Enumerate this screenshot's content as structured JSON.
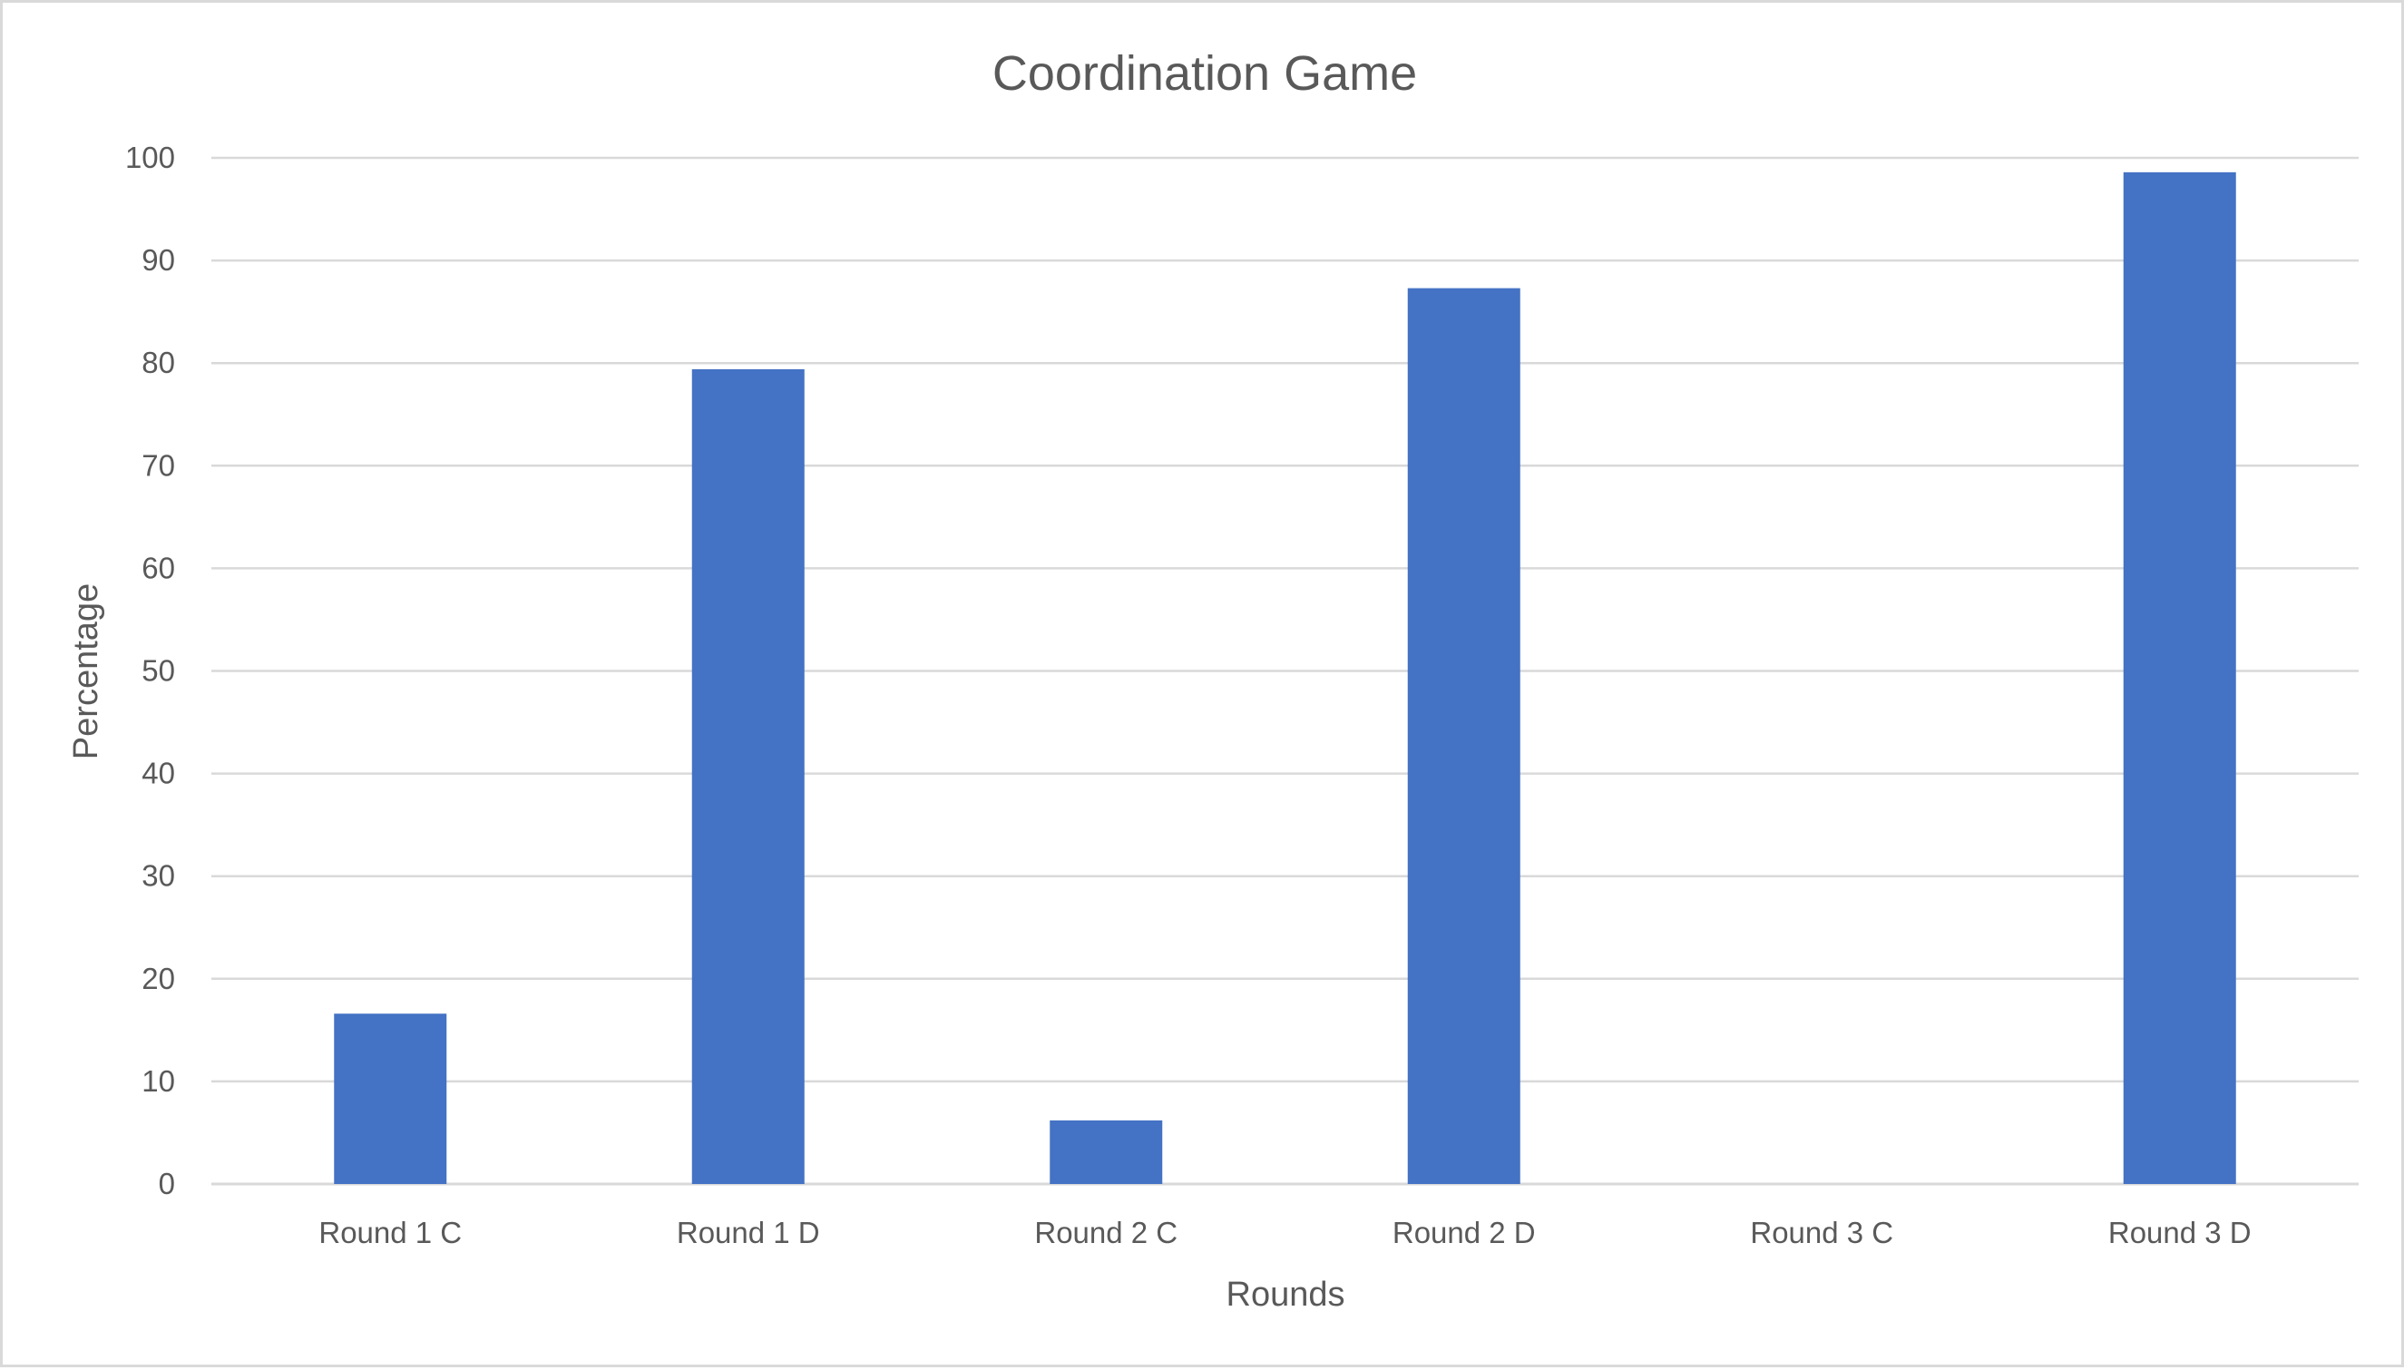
{
  "chart_data": {
    "type": "bar",
    "title": "Coordination Game",
    "xlabel": "Rounds",
    "ylabel": "Percentage",
    "categories": [
      "Round 1 C",
      "Round 1 D",
      "Round 2 C",
      "Round 2 D",
      "Round 3 C",
      "Round 3 D"
    ],
    "values": [
      16.6,
      79.4,
      6.2,
      87.3,
      0,
      98.6
    ],
    "ylim": [
      0,
      100
    ],
    "yticks": [
      0,
      10,
      20,
      30,
      40,
      50,
      60,
      70,
      80,
      90,
      100
    ],
    "grid": true,
    "legend": "none",
    "bar_color": "#4472C4"
  }
}
